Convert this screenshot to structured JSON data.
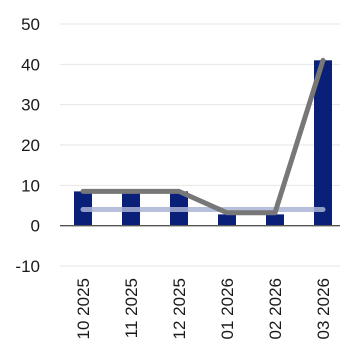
{
  "chart_data": {
    "type": "bar",
    "title": "",
    "xlabel": "",
    "ylabel": "",
    "categories": [
      "10 2025",
      "11 2025",
      "12 2025",
      "01 2026",
      "02 2026",
      "03 2026"
    ],
    "ylim": [
      -10,
      50
    ],
    "yticks": [
      -10,
      0,
      10,
      20,
      30,
      40,
      50
    ],
    "grid": true,
    "legend": "none",
    "series": [
      {
        "kind": "bar",
        "values": [
          8.5,
          8.5,
          8.5,
          2.8,
          2.8,
          41
        ],
        "color": "#0a1f78"
      },
      {
        "kind": "line",
        "values": [
          8.5,
          8.5,
          8.5,
          3.2,
          3.2,
          41
        ],
        "color": "#777777"
      },
      {
        "kind": "line",
        "values": [
          4.0,
          4.0,
          4.0,
          4.0,
          4.0,
          4.0
        ],
        "color": "#a9b4d6"
      }
    ]
  }
}
